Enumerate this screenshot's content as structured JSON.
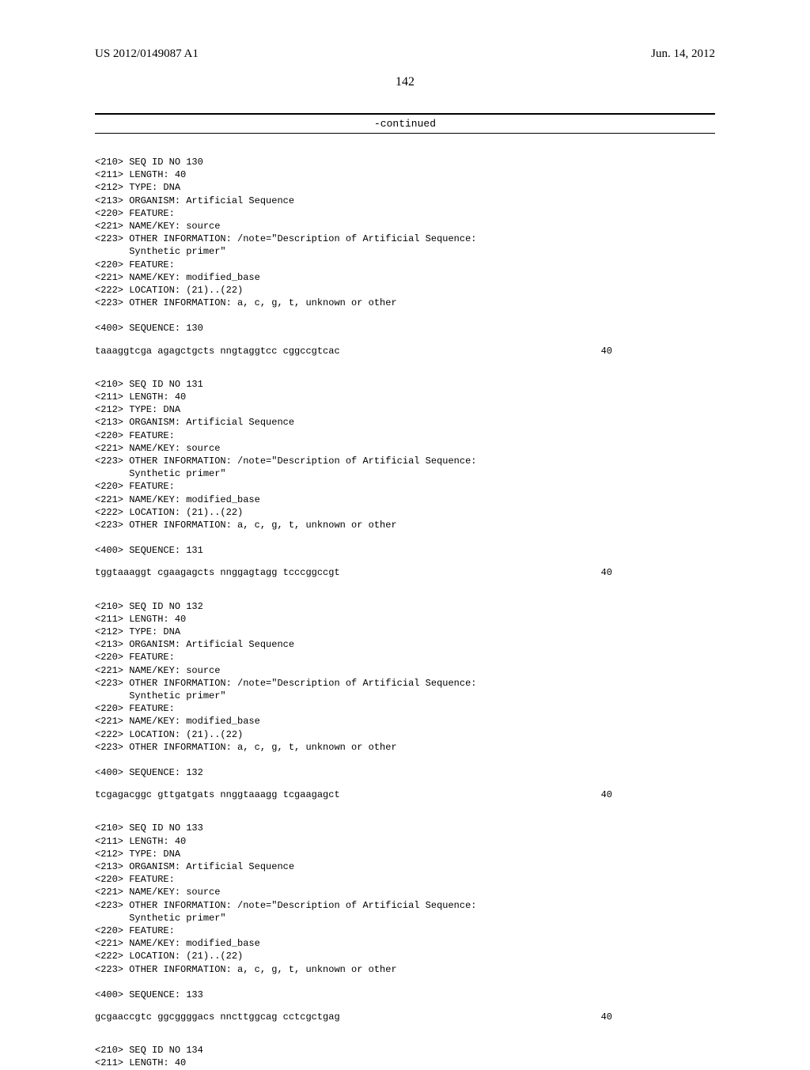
{
  "header": {
    "patent_id": "US 2012/0149087 A1",
    "date": "Jun. 14, 2012",
    "page_number": "142",
    "continued_label": "-continued"
  },
  "blocks": [
    {
      "lines": [
        "<210> SEQ ID NO 130",
        "<211> LENGTH: 40",
        "<212> TYPE: DNA",
        "<213> ORGANISM: Artificial Sequence",
        "<220> FEATURE:",
        "<221> NAME/KEY: source",
        "<223> OTHER INFORMATION: /note=\"Description of Artificial Sequence:",
        "      Synthetic primer\"",
        "<220> FEATURE:",
        "<221> NAME/KEY: modified_base",
        "<222> LOCATION: (21)..(22)",
        "<223> OTHER INFORMATION: a, c, g, t, unknown or other",
        "",
        "<400> SEQUENCE: 130"
      ],
      "sequence": "taaaggtcga agagctgcts nngtaggtcc cggccgtcac",
      "seqlen": "40"
    },
    {
      "lines": [
        "<210> SEQ ID NO 131",
        "<211> LENGTH: 40",
        "<212> TYPE: DNA",
        "<213> ORGANISM: Artificial Sequence",
        "<220> FEATURE:",
        "<221> NAME/KEY: source",
        "<223> OTHER INFORMATION: /note=\"Description of Artificial Sequence:",
        "      Synthetic primer\"",
        "<220> FEATURE:",
        "<221> NAME/KEY: modified_base",
        "<222> LOCATION: (21)..(22)",
        "<223> OTHER INFORMATION: a, c, g, t, unknown or other",
        "",
        "<400> SEQUENCE: 131"
      ],
      "sequence": "tggtaaaggt cgaagagcts nnggagtagg tcccggccgt",
      "seqlen": "40"
    },
    {
      "lines": [
        "<210> SEQ ID NO 132",
        "<211> LENGTH: 40",
        "<212> TYPE: DNA",
        "<213> ORGANISM: Artificial Sequence",
        "<220> FEATURE:",
        "<221> NAME/KEY: source",
        "<223> OTHER INFORMATION: /note=\"Description of Artificial Sequence:",
        "      Synthetic primer\"",
        "<220> FEATURE:",
        "<221> NAME/KEY: modified_base",
        "<222> LOCATION: (21)..(22)",
        "<223> OTHER INFORMATION: a, c, g, t, unknown or other",
        "",
        "<400> SEQUENCE: 132"
      ],
      "sequence": "tcgagacggc gttgatgats nnggtaaagg tcgaagagct",
      "seqlen": "40"
    },
    {
      "lines": [
        "<210> SEQ ID NO 133",
        "<211> LENGTH: 40",
        "<212> TYPE: DNA",
        "<213> ORGANISM: Artificial Sequence",
        "<220> FEATURE:",
        "<221> NAME/KEY: source",
        "<223> OTHER INFORMATION: /note=\"Description of Artificial Sequence:",
        "      Synthetic primer\"",
        "<220> FEATURE:",
        "<221> NAME/KEY: modified_base",
        "<222> LOCATION: (21)..(22)",
        "<223> OTHER INFORMATION: a, c, g, t, unknown or other",
        "",
        "<400> SEQUENCE: 133"
      ],
      "sequence": "gcgaaccgtc ggcggggacs nncttggcag cctcgctgag",
      "seqlen": "40"
    },
    {
      "lines": [
        "<210> SEQ ID NO 134",
        "<211> LENGTH: 40"
      ],
      "sequence": null,
      "seqlen": null
    }
  ]
}
